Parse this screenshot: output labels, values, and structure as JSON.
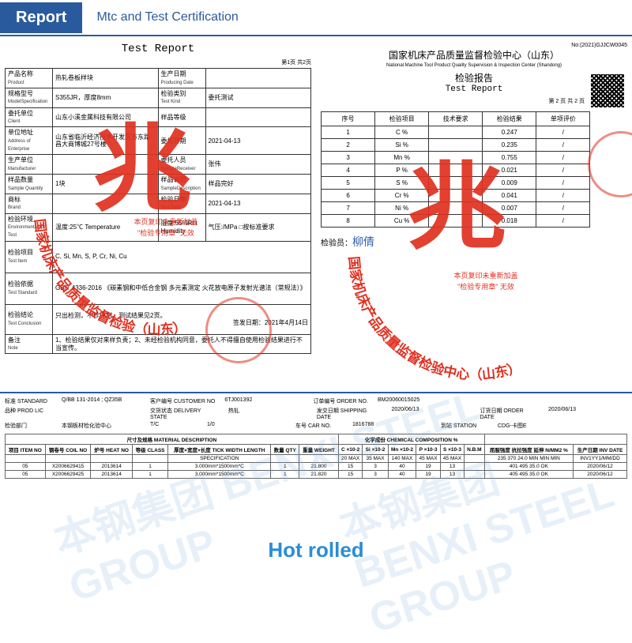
{
  "header": {
    "badge": "Report",
    "subtitle": "Mtc and Test Certification"
  },
  "left": {
    "title": "Test Report",
    "page_label": "第1页 共2页",
    "rows": [
      {
        "lbl_cn": "产品名称",
        "lbl_en": "Product",
        "v1": "热轧卷板样块",
        "lbl2_cn": "生产日期",
        "lbl2_en": "Producing Date",
        "v2": ""
      },
      {
        "lbl_cn": "规格型号",
        "lbl_en": "ModelSpecification",
        "v1": "S355JR，厚度8mm",
        "lbl2_cn": "检验类别",
        "lbl2_en": "Test Kind",
        "v2": "委托测试"
      },
      {
        "lbl_cn": "委托单位",
        "lbl_en": "Client",
        "v1": "山东小溪金属科技有限公司",
        "lbl2_cn": "样品等级",
        "lbl2_en": "",
        "v2": ""
      },
      {
        "lbl_cn": "单位地址",
        "lbl_en": "Address of Enterprise",
        "v1": "山东省临沂经济技术开发区方东路昌大商博城27号楼",
        "lbl2_cn": "委托日期",
        "lbl2_en": "",
        "v2": "2021-04-13"
      },
      {
        "lbl_cn": "生产单位",
        "lbl_en": "Manufacturer",
        "v1": "",
        "lbl2_cn": "委托人员",
        "lbl2_en": "SampleReceiver",
        "v2": "张伟"
      },
      {
        "lbl_cn": "样品数量",
        "lbl_en": "Sample Quantity",
        "v1": "1块",
        "lbl2_cn": "样品说明",
        "lbl2_en": "SampleDescription",
        "v2": "样品完好"
      },
      {
        "lbl_cn": "商标",
        "lbl_en": "Brand",
        "v1": "",
        "lbl2_cn": "检验日期",
        "lbl2_en": "Test Date",
        "v2": "2021-04-13"
      },
      {
        "lbl_cn": "检验环境",
        "lbl_en": "Environmental for Test",
        "v1": "温度:25℃ Temperature",
        "lbl2_cn": "湿度:55%RH Humidity",
        "lbl2_en": "",
        "v2": "气压:/MPa  □按标准要求"
      }
    ],
    "test_item_lbl_cn": "检验项目",
    "test_item_lbl_en": "Test Item",
    "test_item_val": "C, Si, Mn, S, P, Cr, Ni, Cu",
    "standard_lbl_cn": "检验依据",
    "standard_lbl_en": "Test Standard",
    "standard_val": "GB/T 4336-2016 《碳素钢和中低合金钢 多元素测定 火花放电原子发射光谱法（常规法）》",
    "conclusion_lbl_cn": "检验结论",
    "conclusion_lbl_en": "Test Conclusion",
    "conclusion_val": "只出检测，不作评判。测试结果见2页。",
    "sign_line": "签发日期：2021年4月14日",
    "note_lbl_cn": "备注",
    "note_lbl_en": "Note",
    "note_val": "1、检验结果仅对来样负责；2、未经检验机构同意，委托人不得擅自使用检验结果进行不当宣传。",
    "copy_note_1": "本页复印未重新加盖",
    "copy_note_2": "\"检验专用章\" 无效",
    "watermark_arc": "国家机床产品质量监督检验（山东）"
  },
  "right": {
    "no": "No:(2021)GJJCW0045",
    "header_cn": "国家机床产品质量监督检验中心（山东）",
    "header_en": "National Machine Tool Product Quality Supervision & Inspection Center (Shandong)",
    "title_cn": "检验报告",
    "title_en": "Test Report",
    "page_label": "第 2 页 共 2 页",
    "cols": [
      "序号",
      "检验项目",
      "技术要求",
      "检验结果",
      "单项评价"
    ],
    "rows": [
      [
        "1",
        "C %",
        "",
        "0.247",
        "/"
      ],
      [
        "2",
        "Si %",
        "",
        "0.235",
        "/"
      ],
      [
        "3",
        "Mn %",
        "",
        "0.755",
        "/"
      ],
      [
        "4",
        "P %",
        "",
        "0.021",
        "/"
      ],
      [
        "5",
        "S %",
        "",
        "0.009",
        "/"
      ],
      [
        "6",
        "Cr %",
        "",
        "0.041",
        "/"
      ],
      [
        "7",
        "Ni %",
        "",
        "0.007",
        "/"
      ],
      [
        "8",
        "Cu %",
        "",
        "0.018",
        "/"
      ]
    ],
    "inspector_lbl": "检验员：",
    "inspector_sig": "柳倩",
    "copy_note_1": "本页复印未重新加盖",
    "copy_note_2": "\"检验专用章\" 无效",
    "watermark_arc": "国家机床产品质量监督检验中心（山东）"
  },
  "bottom": {
    "head": [
      {
        "l": "标准 STANDARD",
        "v": "Q/BB 131-2014 ; QZ35B"
      },
      {
        "l": "客户编号 CUSTOMER NO",
        "v": "6TJ001392"
      },
      {
        "l": "订单编号 ORDER NO.",
        "v": "BM20060015025"
      }
    ],
    "head2": [
      {
        "l": "品种 PROD LIC",
        "v": ""
      },
      {
        "l": "交货状态 DELIVERY STATE",
        "v": "热轧"
      },
      {
        "l": "发交日期 SHIPPING DATE",
        "v": "2020/06/13"
      },
      {
        "l": "订货日期 ORDER DATE",
        "v": "2020/06/13"
      }
    ],
    "head3": [
      {
        "l": "检验部门",
        "v": "本钢板材检化验中心"
      },
      {
        "l": "T/C",
        "v": "1/0"
      },
      {
        "l": "车号 CAR NO.",
        "v": "1816788"
      },
      {
        "l": "到站 STATION",
        "v": "CDG-卡图E"
      }
    ],
    "sec_title": "尺寸及规格 MATERIAL DESCRIPTION",
    "chem_title": "化学成份 CHEMICAL COMPOSITION %",
    "cols": [
      "项目 ITEM NO",
      "钢卷号 COIL NO",
      "炉号 HEAT NO",
      "等级 CLASS",
      "厚度×宽度×长度 TICK WIDTH LENGTH",
      "数量 QTY",
      "重量 WEIGHT",
      "C ×10-2",
      "Si ×10-2",
      "Mn ×10-2",
      "P ×10-3",
      "S ×10-3",
      "N.B.M",
      "屈服强度 抗拉强度 延伸 N/MM2 %",
      "生产日期 INV DATE"
    ],
    "spec_row": [
      "",
      "",
      "",
      "",
      "SPECIFICATION",
      "",
      "",
      "20 MAX",
      "35 MAX",
      "140 MAX",
      "45 MAX",
      "45 MAX",
      "",
      "235 370 24.0 MIN MIN MIN",
      "INV1YY1/MM/DD"
    ],
    "rows": [
      [
        "05",
        "X2006629415",
        "2013614",
        "1",
        "3.000mm*1500mm*C",
        "1",
        "21.800",
        "15",
        "3",
        "40",
        "19",
        "13",
        "",
        "401 495 35.0 OK",
        "2020/06/12"
      ],
      [
        "05",
        "X2006629425",
        "2013614",
        "1",
        "3.000mm*1500mm*C",
        "1",
        "21.820",
        "15",
        "3",
        "40",
        "19",
        "13",
        "",
        "405 495 35.0 OK",
        "2020/06/12"
      ]
    ],
    "hot_rolled": "Hot rolled",
    "watermark": "本钢集团 BENXI STEEL GROUP"
  },
  "colors": {
    "primary": "#2a5a9e",
    "stamp": "#e03020",
    "hot": "#2a8dd6"
  }
}
